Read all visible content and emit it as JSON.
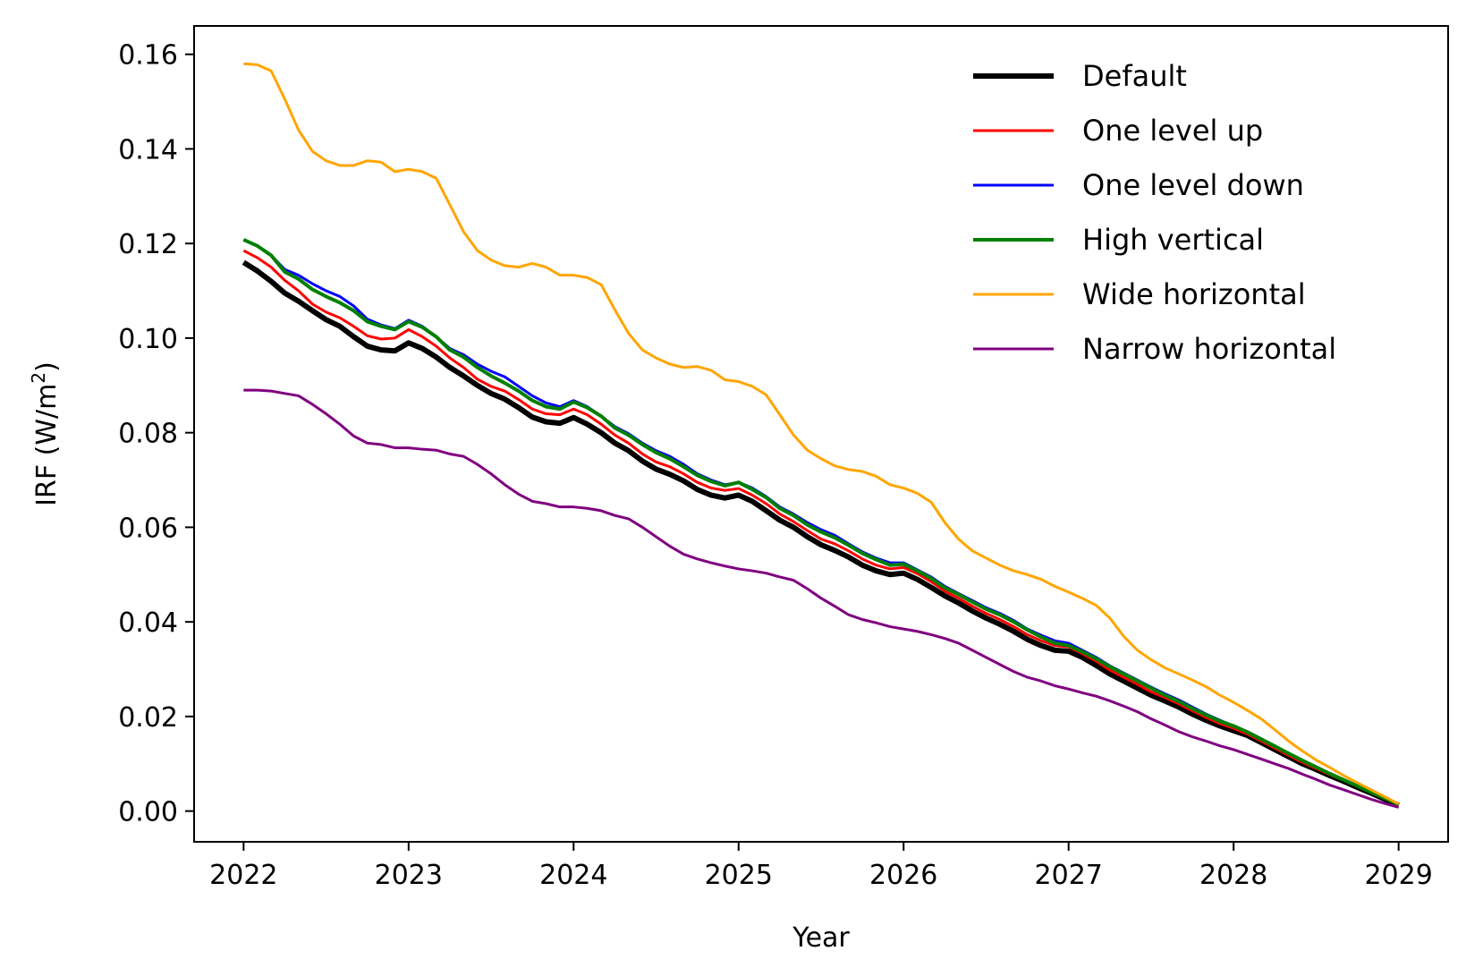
{
  "chart_data": {
    "type": "line",
    "xlabel": "Year",
    "ylabel": "IRF (W/m",
    "ylabel_sup": "2",
    "ylabel_close": ")",
    "xlim": [
      2021.7,
      2029.3
    ],
    "ylim": [
      -0.0065,
      0.166
    ],
    "xticks": [
      2022,
      2023,
      2024,
      2025,
      2026,
      2027,
      2028,
      2029
    ],
    "xtick_labels": [
      "2022",
      "2023",
      "2024",
      "2025",
      "2026",
      "2027",
      "2028",
      "2029"
    ],
    "yticks": [
      0.0,
      0.02,
      0.04,
      0.06,
      0.08,
      0.1,
      0.12,
      0.14,
      0.16
    ],
    "ytick_labels": [
      "0.00",
      "0.02",
      "0.04",
      "0.06",
      "0.08",
      "0.10",
      "0.12",
      "0.14",
      "0.16"
    ],
    "grid": false,
    "legend_position": "top-right",
    "x": [
      2022.0,
      2022.083,
      2022.167,
      2022.25,
      2022.333,
      2022.417,
      2022.5,
      2022.583,
      2022.667,
      2022.75,
      2022.833,
      2022.917,
      2023.0,
      2023.083,
      2023.167,
      2023.25,
      2023.333,
      2023.417,
      2023.5,
      2023.583,
      2023.667,
      2023.75,
      2023.833,
      2023.917,
      2024.0,
      2024.083,
      2024.167,
      2024.25,
      2024.333,
      2024.417,
      2024.5,
      2024.583,
      2024.667,
      2024.75,
      2024.833,
      2024.917,
      2025.0,
      2025.083,
      2025.167,
      2025.25,
      2025.333,
      2025.417,
      2025.5,
      2025.583,
      2025.667,
      2025.75,
      2025.833,
      2025.917,
      2026.0,
      2026.083,
      2026.167,
      2026.25,
      2026.333,
      2026.417,
      2026.5,
      2026.583,
      2026.667,
      2026.75,
      2026.833,
      2026.917,
      2027.0,
      2027.083,
      2027.167,
      2027.25,
      2027.333,
      2027.417,
      2027.5,
      2027.583,
      2027.667,
      2027.75,
      2027.833,
      2027.917,
      2028.0,
      2028.083,
      2028.167,
      2028.25,
      2028.333,
      2028.417,
      2028.5,
      2028.583,
      2028.667,
      2028.75,
      2028.833,
      2028.917,
      2029.0
    ],
    "series": [
      {
        "name": "Default",
        "color": "#000000",
        "width": 6,
        "values": [
          0.116,
          0.1142,
          0.112,
          0.1095,
          0.1078,
          0.1058,
          0.1039,
          0.1025,
          0.1003,
          0.0983,
          0.0975,
          0.0973,
          0.099,
          0.0978,
          0.096,
          0.0938,
          0.092,
          0.09,
          0.0883,
          0.0871,
          0.0853,
          0.0833,
          0.0823,
          0.082,
          0.0832,
          0.0818,
          0.08,
          0.0778,
          0.0762,
          0.074,
          0.0723,
          0.0712,
          0.0698,
          0.068,
          0.0668,
          0.0662,
          0.0668,
          0.0655,
          0.0635,
          0.0615,
          0.06,
          0.058,
          0.0563,
          0.0551,
          0.0537,
          0.052,
          0.0508,
          0.05,
          0.0503,
          0.049,
          0.0473,
          0.0455,
          0.044,
          0.0423,
          0.0408,
          0.0395,
          0.038,
          0.0363,
          0.035,
          0.034,
          0.0338,
          0.0325,
          0.0308,
          0.029,
          0.0275,
          0.026,
          0.0245,
          0.0233,
          0.022,
          0.0205,
          0.0192,
          0.018,
          0.017,
          0.016,
          0.0145,
          0.013,
          0.0115,
          0.01,
          0.0088,
          0.0075,
          0.0063,
          0.005,
          0.0038,
          0.0025,
          0.0012
        ]
      },
      {
        "name": "One level up",
        "color": "#ff0000",
        "width": 3,
        "values": [
          0.1185,
          0.117,
          0.115,
          0.1122,
          0.11,
          0.1072,
          0.1055,
          0.1043,
          0.1025,
          0.1005,
          0.0998,
          0.1,
          0.1018,
          0.1003,
          0.0983,
          0.0958,
          0.0938,
          0.0913,
          0.0898,
          0.0888,
          0.087,
          0.085,
          0.084,
          0.0838,
          0.085,
          0.0838,
          0.0818,
          0.0795,
          0.0778,
          0.0755,
          0.0738,
          0.0728,
          0.0713,
          0.0695,
          0.0683,
          0.0678,
          0.0682,
          0.0668,
          0.065,
          0.0628,
          0.0612,
          0.0593,
          0.0575,
          0.0565,
          0.055,
          0.0533,
          0.052,
          0.0512,
          0.0515,
          0.0502,
          0.0485,
          0.0465,
          0.045,
          0.0433,
          0.0418,
          0.0405,
          0.039,
          0.0373,
          0.036,
          0.035,
          0.0347,
          0.0333,
          0.0317,
          0.0298,
          0.0283,
          0.0268,
          0.0252,
          0.024,
          0.0227,
          0.0212,
          0.0198,
          0.0185,
          0.0175,
          0.0163,
          0.0148,
          0.0133,
          0.0118,
          0.0103,
          0.009,
          0.0077,
          0.0065,
          0.0052,
          0.0039,
          0.0026,
          0.0013
        ]
      },
      {
        "name": "One level down",
        "color": "#0000ff",
        "width": 3,
        "values": [
          0.1208,
          0.1195,
          0.1175,
          0.1145,
          0.1133,
          0.1115,
          0.11,
          0.1088,
          0.1068,
          0.104,
          0.1028,
          0.102,
          0.1038,
          0.1025,
          0.1003,
          0.0978,
          0.0965,
          0.0945,
          0.093,
          0.0918,
          0.0898,
          0.0878,
          0.0863,
          0.0855,
          0.0868,
          0.0855,
          0.0835,
          0.0813,
          0.0798,
          0.0778,
          0.0762,
          0.075,
          0.0733,
          0.0713,
          0.07,
          0.069,
          0.0695,
          0.0683,
          0.0665,
          0.0643,
          0.0628,
          0.061,
          0.0595,
          0.0583,
          0.0565,
          0.0548,
          0.0535,
          0.0525,
          0.0525,
          0.051,
          0.0495,
          0.0475,
          0.046,
          0.0445,
          0.043,
          0.0418,
          0.0403,
          0.0385,
          0.0372,
          0.036,
          0.0355,
          0.034,
          0.0325,
          0.0307,
          0.0292,
          0.0277,
          0.0262,
          0.0248,
          0.0235,
          0.022,
          0.0205,
          0.0192,
          0.018,
          0.0168,
          0.0153,
          0.0138,
          0.0122,
          0.0107,
          0.0093,
          0.0079,
          0.0066,
          0.0053,
          0.004,
          0.0027,
          0.0014
        ]
      },
      {
        "name": "High vertical",
        "color": "#008000",
        "width": 4,
        "values": [
          0.1208,
          0.1195,
          0.1175,
          0.114,
          0.1125,
          0.1103,
          0.1088,
          0.1075,
          0.1058,
          0.1035,
          0.1025,
          0.1018,
          0.1035,
          0.1023,
          0.1003,
          0.0975,
          0.096,
          0.0938,
          0.092,
          0.0905,
          0.0888,
          0.0868,
          0.0855,
          0.085,
          0.0865,
          0.0853,
          0.0835,
          0.081,
          0.0795,
          0.0775,
          0.0758,
          0.0745,
          0.0728,
          0.071,
          0.0697,
          0.0688,
          0.0695,
          0.068,
          0.0663,
          0.064,
          0.0625,
          0.0605,
          0.059,
          0.0578,
          0.0562,
          0.0545,
          0.0532,
          0.052,
          0.0522,
          0.0508,
          0.0492,
          0.0472,
          0.0458,
          0.0442,
          0.0427,
          0.0415,
          0.04,
          0.0383,
          0.0368,
          0.0355,
          0.035,
          0.0337,
          0.0322,
          0.0305,
          0.029,
          0.0275,
          0.026,
          0.0245,
          0.0232,
          0.0217,
          0.0203,
          0.019,
          0.018,
          0.0167,
          0.0152,
          0.0137,
          0.0122,
          0.0107,
          0.0093,
          0.0079,
          0.0066,
          0.0053,
          0.004,
          0.0027,
          0.0014
        ]
      },
      {
        "name": "Wide horizontal",
        "color": "#ffa500",
        "width": 3,
        "values": [
          0.158,
          0.1578,
          0.1565,
          0.1505,
          0.144,
          0.1395,
          0.1375,
          0.1365,
          0.1365,
          0.1375,
          0.1372,
          0.1352,
          0.1357,
          0.1352,
          0.1338,
          0.1282,
          0.1225,
          0.1185,
          0.1165,
          0.1153,
          0.115,
          0.1158,
          0.115,
          0.1133,
          0.1133,
          0.1128,
          0.1113,
          0.106,
          0.101,
          0.0975,
          0.0958,
          0.0945,
          0.0938,
          0.094,
          0.0932,
          0.0912,
          0.0908,
          0.0898,
          0.088,
          0.0838,
          0.0795,
          0.0763,
          0.0745,
          0.073,
          0.0722,
          0.0718,
          0.0708,
          0.069,
          0.0683,
          0.0672,
          0.0653,
          0.061,
          0.0575,
          0.055,
          0.0535,
          0.052,
          0.0508,
          0.05,
          0.049,
          0.0475,
          0.0463,
          0.045,
          0.0435,
          0.0408,
          0.037,
          0.034,
          0.032,
          0.0303,
          0.029,
          0.0277,
          0.0263,
          0.0245,
          0.023,
          0.0213,
          0.0195,
          0.0172,
          0.0148,
          0.0127,
          0.0108,
          0.0092,
          0.0075,
          0.006,
          0.0045,
          0.003,
          0.0015
        ]
      },
      {
        "name": "Narrow horizontal",
        "color": "#800080",
        "width": 3,
        "values": [
          0.089,
          0.089,
          0.0888,
          0.0883,
          0.0878,
          0.086,
          0.084,
          0.0818,
          0.0793,
          0.0778,
          0.0775,
          0.0768,
          0.0768,
          0.0765,
          0.0763,
          0.0755,
          0.075,
          0.0733,
          0.0713,
          0.069,
          0.067,
          0.0655,
          0.065,
          0.0643,
          0.0643,
          0.064,
          0.0635,
          0.0625,
          0.0618,
          0.06,
          0.058,
          0.056,
          0.0543,
          0.0533,
          0.0525,
          0.0518,
          0.0512,
          0.0508,
          0.0503,
          0.0495,
          0.0488,
          0.047,
          0.045,
          0.0433,
          0.0415,
          0.0405,
          0.0398,
          0.039,
          0.0385,
          0.038,
          0.0373,
          0.0365,
          0.0355,
          0.034,
          0.0325,
          0.031,
          0.0295,
          0.0283,
          0.0275,
          0.0265,
          0.0258,
          0.025,
          0.0243,
          0.0233,
          0.0222,
          0.021,
          0.0195,
          0.0182,
          0.0168,
          0.0157,
          0.0148,
          0.0138,
          0.013,
          0.012,
          0.011,
          0.01,
          0.009,
          0.0078,
          0.0067,
          0.0055,
          0.0045,
          0.0035,
          0.0025,
          0.0016,
          0.0008
        ]
      }
    ]
  }
}
